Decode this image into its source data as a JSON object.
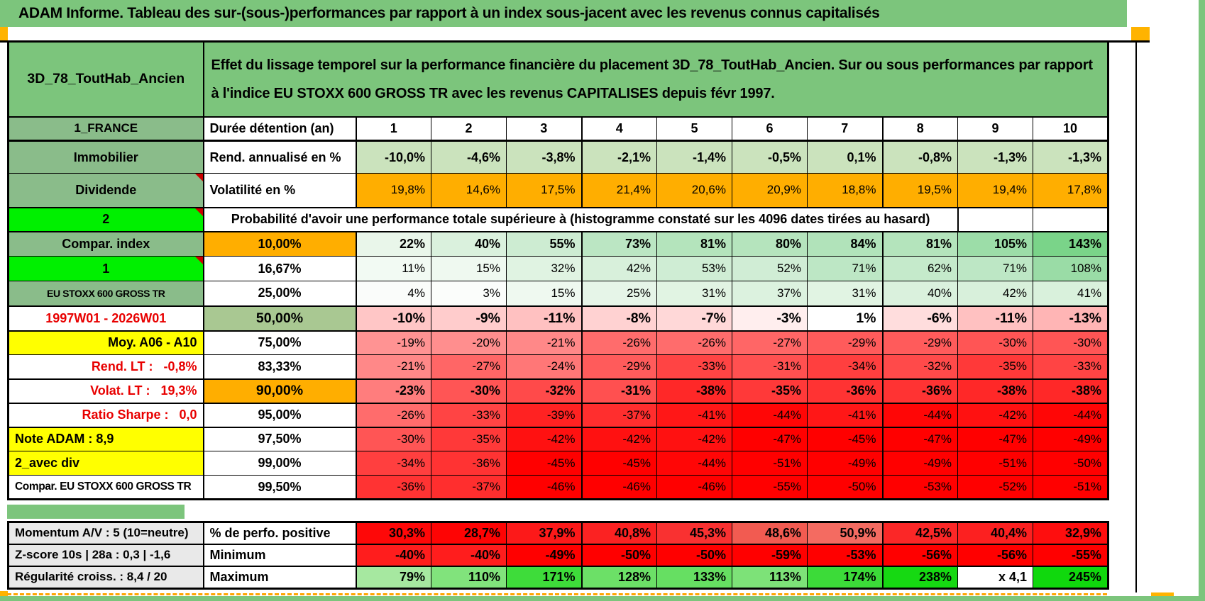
{
  "title": "ADAM Informe. Tableau des sur-(sous-)performances par rapport à un index sous-jacent avec les revenus connus capitalisés",
  "colors": {
    "frame_green": "#7cc57c",
    "label_green": "#8abc8a",
    "lime_green": "#00f000",
    "orange": "#ffae00",
    "yellow": "#ffff00",
    "sage_green": "#a9c892",
    "gray_label": "#e9e9e9",
    "marker_orange": "#ffb300",
    "note_marker_red": "#cc0000",
    "deep_red": "#ff0000",
    "bright_green": "#10d80d"
  },
  "main_table": {
    "rows": [
      {
        "label": {
          "t": "3D_78_ToutHab_Ancien",
          "bg": "#7cc57c",
          "cls": "c b xbig"
        },
        "span": {
          "t": "Effet du lissage temporel sur la performance financière du placement 3D_78_ToutHab_Ancien. Sur ou sous performances par rapport à l'indice EU STOXX 600 GROSS TR avec les revenus CAPITALISES depuis févr 1997.",
          "cols": 11,
          "bg": "#7cc57c",
          "cls": "b desc"
        }
      },
      {
        "label": {
          "t": "1_FRANCE",
          "bg": "#8abc8a",
          "cls": "c b"
        },
        "c2": {
          "t": "Durée détention (an)",
          "bg": "#ffffff",
          "cls": "l b big"
        },
        "cells_cls": "c b big",
        "cells": [
          {
            "t": "1",
            "bg": "#ffffff"
          },
          {
            "t": "2",
            "bg": "#ffffff"
          },
          {
            "t": "3",
            "bg": "#ffffff"
          },
          {
            "t": "4",
            "bg": "#ffffff"
          },
          {
            "t": "5",
            "bg": "#ffffff"
          },
          {
            "t": "6",
            "bg": "#ffffff"
          },
          {
            "t": "7",
            "bg": "#ffffff"
          },
          {
            "t": "8",
            "bg": "#ffffff"
          },
          {
            "t": "9",
            "bg": "#ffffff"
          },
          {
            "t": "10",
            "bg": "#ffffff"
          }
        ]
      },
      {
        "label": {
          "t": "Immobilier",
          "bg": "#8abc8a",
          "cls": "c b big"
        },
        "c2": {
          "t": "Rend. annualisé en %",
          "bg": "#ffffff",
          "cls": "l b big"
        },
        "cells_cls": "r b big",
        "cells": [
          {
            "t": "-10,0%",
            "bg": "#cbe3bd"
          },
          {
            "t": "-4,6%",
            "bg": "#cbe3bd"
          },
          {
            "t": "-3,8%",
            "bg": "#cbe3bd"
          },
          {
            "t": "-2,1%",
            "bg": "#cbe3bd"
          },
          {
            "t": "-1,4%",
            "bg": "#cbe3bd"
          },
          {
            "t": "-0,5%",
            "bg": "#cbe3bd"
          },
          {
            "t": "0,1%",
            "bg": "#cbe3bd"
          },
          {
            "t": "-0,8%",
            "bg": "#cbe3bd"
          },
          {
            "t": "-1,3%",
            "bg": "#cbe3bd"
          },
          {
            "t": "-1,3%",
            "bg": "#cbe3bd"
          }
        ]
      },
      {
        "label": {
          "t": "Dividende",
          "bg": "#8abc8a",
          "cls": "c b big mk"
        },
        "c2": {
          "t": "Volatilité en %",
          "bg": "#ffffff",
          "cls": "l b big"
        },
        "cells_cls": "r",
        "cells": [
          {
            "t": "19,8%",
            "bg": "#ffae00"
          },
          {
            "t": "14,6%",
            "bg": "#ffae00"
          },
          {
            "t": "17,5%",
            "bg": "#ffae00"
          },
          {
            "t": "21,4%",
            "bg": "#ffae00"
          },
          {
            "t": "20,6%",
            "bg": "#ffae00"
          },
          {
            "t": "20,9%",
            "bg": "#ffae00"
          },
          {
            "t": "18,8%",
            "bg": "#ffae00"
          },
          {
            "t": "19,5%",
            "bg": "#ffae00"
          },
          {
            "t": "19,4%",
            "bg": "#ffae00"
          },
          {
            "t": "17,8%",
            "bg": "#ffae00"
          }
        ]
      },
      {
        "label": {
          "t": "2",
          "bg": "#00f000",
          "cls": "c b big mk"
        },
        "span": {
          "t": "Probabilité d'avoir une performance totale supérieure à (histogramme constaté sur les 4096 dates tirées au hasard)",
          "cols": 9,
          "bg": "#ffffff",
          "cls": "c b big"
        },
        "cells_cls": "r",
        "cells": [
          {
            "t": "",
            "bg": "#ffffff"
          },
          {
            "t": "",
            "bg": "#ffffff"
          }
        ]
      },
      {
        "label": {
          "t": "Compar. index",
          "bg": "#8abc8a",
          "cls": "c b big"
        },
        "c2": {
          "t": "10,00%",
          "bg": "#ffae00",
          "cls": "c b big"
        },
        "cells_cls": "r b big",
        "cells": [
          {
            "t": "22%",
            "bg": "#e9f6ea"
          },
          {
            "t": "40%",
            "bg": "#daf1dd"
          },
          {
            "t": "55%",
            "bg": "#cdecd2"
          },
          {
            "t": "73%",
            "bg": "#bbe6c3"
          },
          {
            "t": "81%",
            "bg": "#b4e4bc"
          },
          {
            "t": "80%",
            "bg": "#b5e4bd"
          },
          {
            "t": "84%",
            "bg": "#b1e3ba"
          },
          {
            "t": "81%",
            "bg": "#b4e4bc"
          },
          {
            "t": "105%",
            "bg": "#9cdda8"
          },
          {
            "t": "143%",
            "bg": "#7ad489"
          }
        ]
      },
      {
        "label": {
          "t": "1",
          "bg": "#00f000",
          "cls": "c b big mk"
        },
        "c2": {
          "t": "16,67%",
          "bg": "#ffffff",
          "cls": "c b big"
        },
        "cells_cls": "r",
        "cells": [
          {
            "t": "11%",
            "bg": "#f2faf3"
          },
          {
            "t": "15%",
            "bg": "#eff9f0"
          },
          {
            "t": "32%",
            "bg": "#e0f3e2"
          },
          {
            "t": "42%",
            "bg": "#d8f0db"
          },
          {
            "t": "53%",
            "bg": "#cfedd4"
          },
          {
            "t": "52%",
            "bg": "#d0edd5"
          },
          {
            "t": "71%",
            "bg": "#bde7c5"
          },
          {
            "t": "62%",
            "bg": "#c5eacb"
          },
          {
            "t": "71%",
            "bg": "#bde7c5"
          },
          {
            "t": "108%",
            "bg": "#9adca6"
          }
        ]
      },
      {
        "label": {
          "t": "EU STOXX 600 GROSS TR",
          "bg": "#8abc8a",
          "cls": "c b sm2"
        },
        "c2": {
          "t": "25,00%",
          "bg": "#ffffff",
          "cls": "c b big"
        },
        "cells_cls": "r",
        "cells": [
          {
            "t": "4%",
            "bg": "#fafcfa"
          },
          {
            "t": "3%",
            "bg": "#fbfdfb"
          },
          {
            "t": "15%",
            "bg": "#eff9f0"
          },
          {
            "t": "25%",
            "bg": "#e6f5e8"
          },
          {
            "t": "31%",
            "bg": "#e1f4e3"
          },
          {
            "t": "37%",
            "bg": "#dcf2df"
          },
          {
            "t": "31%",
            "bg": "#e1f4e3"
          },
          {
            "t": "40%",
            "bg": "#daf1dd"
          },
          {
            "t": "42%",
            "bg": "#d8f0db"
          },
          {
            "t": "41%",
            "bg": "#d9f1dc"
          }
        ]
      },
      {
        "label": {
          "t": "1997W01 - 2026W01",
          "bg": "#ffffff",
          "cls": "c b big redtx"
        },
        "c2": {
          "t": "50,00%",
          "bg": "#a9c892",
          "cls": "c b xbig"
        },
        "cells_cls": "r b xbig",
        "cells": [
          {
            "t": "-10%",
            "bg": "#ffc6c6"
          },
          {
            "t": "-9%",
            "bg": "#ffcccc"
          },
          {
            "t": "-11%",
            "bg": "#ffc1c1"
          },
          {
            "t": "-8%",
            "bg": "#ffd2d2"
          },
          {
            "t": "-7%",
            "bg": "#ffd8d8"
          },
          {
            "t": "-3%",
            "bg": "#ffeeee"
          },
          {
            "t": "1%",
            "bg": "#ffffff"
          },
          {
            "t": "-6%",
            "bg": "#ffdddd"
          },
          {
            "t": "-11%",
            "bg": "#ffc1c1"
          },
          {
            "t": "-13%",
            "bg": "#ffb5b5"
          }
        ]
      },
      {
        "label": {
          "t": "Moy. A06 - A10",
          "bg": "#ffff00",
          "cls": "r b big"
        },
        "c2": {
          "t": "75,00%",
          "bg": "#ffffff",
          "cls": "c b big"
        },
        "cells_cls": "r",
        "cells": [
          {
            "t": "-19%",
            "bg": "#ff9393"
          },
          {
            "t": "-20%",
            "bg": "#ff8e8e"
          },
          {
            "t": "-21%",
            "bg": "#ff8888"
          },
          {
            "t": "-26%",
            "bg": "#ff6c6c"
          },
          {
            "t": "-26%",
            "bg": "#ff6c6c"
          },
          {
            "t": "-27%",
            "bg": "#ff6666"
          },
          {
            "t": "-29%",
            "bg": "#ff5b5b"
          },
          {
            "t": "-29%",
            "bg": "#ff5b5b"
          },
          {
            "t": "-30%",
            "bg": "#ff5555"
          },
          {
            "t": "-30%",
            "bg": "#ff5555"
          }
        ]
      },
      {
        "label": {
          "t": "Rend. LT :   -0,8%",
          "bg": "#ffffff",
          "cls": "r b big redtx"
        },
        "c2": {
          "t": "83,33%",
          "bg": "#ffffff",
          "cls": "c b big"
        },
        "cells_cls": "r",
        "cells": [
          {
            "t": "-21%",
            "bg": "#ff8888"
          },
          {
            "t": "-27%",
            "bg": "#ff6666"
          },
          {
            "t": "-24%",
            "bg": "#ff7777"
          },
          {
            "t": "-29%",
            "bg": "#ff5b5b"
          },
          {
            "t": "-33%",
            "bg": "#ff4444"
          },
          {
            "t": "-31%",
            "bg": "#ff5050"
          },
          {
            "t": "-34%",
            "bg": "#ff3f3f"
          },
          {
            "t": "-32%",
            "bg": "#ff4a4a"
          },
          {
            "t": "-35%",
            "bg": "#ff3939"
          },
          {
            "t": "-33%",
            "bg": "#ff4444"
          }
        ]
      },
      {
        "label": {
          "t": "Volat. LT :   19,3%",
          "bg": "#ffffff",
          "cls": "r b big redtx"
        },
        "c2": {
          "t": "90,00%",
          "bg": "#ffae00",
          "cls": "c b xbig"
        },
        "cells_cls": "r b big",
        "cells": [
          {
            "t": "-23%",
            "bg": "#ff7d7d"
          },
          {
            "t": "-30%",
            "bg": "#ff5555"
          },
          {
            "t": "-32%",
            "bg": "#ff4a4a"
          },
          {
            "t": "-31%",
            "bg": "#ff5050"
          },
          {
            "t": "-38%",
            "bg": "#ff2828"
          },
          {
            "t": "-35%",
            "bg": "#ff3939"
          },
          {
            "t": "-36%",
            "bg": "#ff3333"
          },
          {
            "t": "-36%",
            "bg": "#ff3333"
          },
          {
            "t": "-38%",
            "bg": "#ff2828"
          },
          {
            "t": "-38%",
            "bg": "#ff2828"
          }
        ]
      },
      {
        "label": {
          "t": "Ratio Sharpe :   0,0",
          "bg": "#ffffff",
          "cls": "r b big redtx"
        },
        "c2": {
          "t": "95,00%",
          "bg": "#ffffff",
          "cls": "c b big"
        },
        "cells_cls": "r",
        "cells": [
          {
            "t": "-26%",
            "bg": "#ff6c6c"
          },
          {
            "t": "-33%",
            "bg": "#ff4444"
          },
          {
            "t": "-39%",
            "bg": "#ff2222"
          },
          {
            "t": "-37%",
            "bg": "#ff2e2e"
          },
          {
            "t": "-41%",
            "bg": "#ff1717"
          },
          {
            "t": "-44%",
            "bg": "#ff0606"
          },
          {
            "t": "-41%",
            "bg": "#ff1717"
          },
          {
            "t": "-44%",
            "bg": "#ff0606"
          },
          {
            "t": "-42%",
            "bg": "#ff1111"
          },
          {
            "t": "-44%",
            "bg": "#ff0606"
          }
        ]
      },
      {
        "label": {
          "t": "Note ADAM : 8,9",
          "bg": "#ffff00",
          "cls": "l b big"
        },
        "c2": {
          "t": "97,50%",
          "bg": "#ffffff",
          "cls": "c b big"
        },
        "cells_cls": "r",
        "cells": [
          {
            "t": "-30%",
            "bg": "#ff5555"
          },
          {
            "t": "-35%",
            "bg": "#ff3939"
          },
          {
            "t": "-42%",
            "bg": "#ff1111"
          },
          {
            "t": "-42%",
            "bg": "#ff1111"
          },
          {
            "t": "-42%",
            "bg": "#ff1111"
          },
          {
            "t": "-47%",
            "bg": "#ff0000"
          },
          {
            "t": "-45%",
            "bg": "#ff0000"
          },
          {
            "t": "-47%",
            "bg": "#ff0000"
          },
          {
            "t": "-47%",
            "bg": "#ff0000"
          },
          {
            "t": "-49%",
            "bg": "#ff0000"
          }
        ]
      },
      {
        "label": {
          "t": "2_avec div",
          "bg": "#ffff00",
          "cls": "l b big"
        },
        "c2": {
          "t": "99,00%",
          "bg": "#ffffff",
          "cls": "c b big"
        },
        "cells_cls": "r",
        "cells": [
          {
            "t": "-34%",
            "bg": "#ff3f3f"
          },
          {
            "t": "-36%",
            "bg": "#ff3333"
          },
          {
            "t": "-45%",
            "bg": "#ff0000"
          },
          {
            "t": "-45%",
            "bg": "#ff0000"
          },
          {
            "t": "-44%",
            "bg": "#ff0606"
          },
          {
            "t": "-51%",
            "bg": "#ff0000"
          },
          {
            "t": "-49%",
            "bg": "#ff0000"
          },
          {
            "t": "-49%",
            "bg": "#ff0000"
          },
          {
            "t": "-51%",
            "bg": "#ff0000"
          },
          {
            "t": "-50%",
            "bg": "#ff0000"
          }
        ]
      },
      {
        "label": {
          "t": "Compar. EU STOXX 600 GROSS TR",
          "bg": "#ffffff",
          "cls": "l b sm3"
        },
        "c2": {
          "t": "99,50%",
          "bg": "#ffffff",
          "cls": "c b big"
        },
        "cells_cls": "r",
        "cells": [
          {
            "t": "-36%",
            "bg": "#ff3333"
          },
          {
            "t": "-37%",
            "bg": "#ff2e2e"
          },
          {
            "t": "-46%",
            "bg": "#ff0000"
          },
          {
            "t": "-46%",
            "bg": "#ff0000"
          },
          {
            "t": "-46%",
            "bg": "#ff0000"
          },
          {
            "t": "-55%",
            "bg": "#ff0000"
          },
          {
            "t": "-50%",
            "bg": "#ff0000"
          },
          {
            "t": "-53%",
            "bg": "#ff0000"
          },
          {
            "t": "-52%",
            "bg": "#ff0000"
          },
          {
            "t": "-51%",
            "bg": "#ff0000"
          }
        ]
      }
    ]
  },
  "bottom_table": {
    "rows": [
      {
        "label": {
          "t": "Momentum A/V : 5 (10=neutre)",
          "bg": "#e9e9e9",
          "cls": "l b"
        },
        "c2": {
          "t": "% de perfo. positive",
          "bg": "#ffffff",
          "cls": "l b big"
        },
        "cells_cls": "r b big",
        "cells": [
          {
            "t": "30,3%",
            "bg": "#fe0808"
          },
          {
            "t": "28,7%",
            "bg": "#fe0404"
          },
          {
            "t": "37,9%",
            "bg": "#fc1919"
          },
          {
            "t": "40,8%",
            "bg": "#fb2222"
          },
          {
            "t": "45,3%",
            "bg": "#f93131"
          },
          {
            "t": "48,6%",
            "bg": "#f25b51"
          },
          {
            "t": "50,9%",
            "bg": "#f46b61"
          },
          {
            "t": "42,5%",
            "bg": "#fb2727"
          },
          {
            "t": "40,4%",
            "bg": "#fc2020"
          },
          {
            "t": "32,9%",
            "bg": "#fe0e0e"
          }
        ]
      },
      {
        "label": {
          "t": "Z-score 10s | 28a : 0,3 | -1,6",
          "bg": "#e9e9e9",
          "cls": "l b"
        },
        "c2": {
          "t": "Minimum",
          "bg": "#ffffff",
          "cls": "l b big"
        },
        "cells_cls": "r b big",
        "cells": [
          {
            "t": "-40%",
            "bg": "#ff1d1d"
          },
          {
            "t": "-40%",
            "bg": "#ff1d1d"
          },
          {
            "t": "-49%",
            "bg": "#ff0000"
          },
          {
            "t": "-50%",
            "bg": "#ff0000"
          },
          {
            "t": "-50%",
            "bg": "#ff0000"
          },
          {
            "t": "-59%",
            "bg": "#ff0000"
          },
          {
            "t": "-53%",
            "bg": "#ff0000"
          },
          {
            "t": "-56%",
            "bg": "#ff0000"
          },
          {
            "t": "-56%",
            "bg": "#ff0000"
          },
          {
            "t": "-55%",
            "bg": "#ff0000"
          }
        ]
      },
      {
        "label": {
          "t": "Régularité croiss. : 8,4 / 20",
          "bg": "#e9e9e9",
          "cls": "l b"
        },
        "c2": {
          "t": "Maximum",
          "bg": "#ffffff",
          "cls": "l b big"
        },
        "cells_cls": "r b big",
        "cells": [
          {
            "t": "79%",
            "bg": "#a6e8a0"
          },
          {
            "t": "110%",
            "bg": "#81e37c"
          },
          {
            "t": "171%",
            "bg": "#3edc3a"
          },
          {
            "t": "128%",
            "bg": "#6ce067"
          },
          {
            "t": "133%",
            "bg": "#66df62"
          },
          {
            "t": "113%",
            "bg": "#7de278"
          },
          {
            "t": "174%",
            "bg": "#3cdb39"
          },
          {
            "t": "238%",
            "bg": "#16d912"
          },
          {
            "t": "x 4,1",
            "bg": "#ffffff"
          },
          {
            "t": "245%",
            "bg": "#10d80d"
          }
        ]
      }
    ]
  }
}
